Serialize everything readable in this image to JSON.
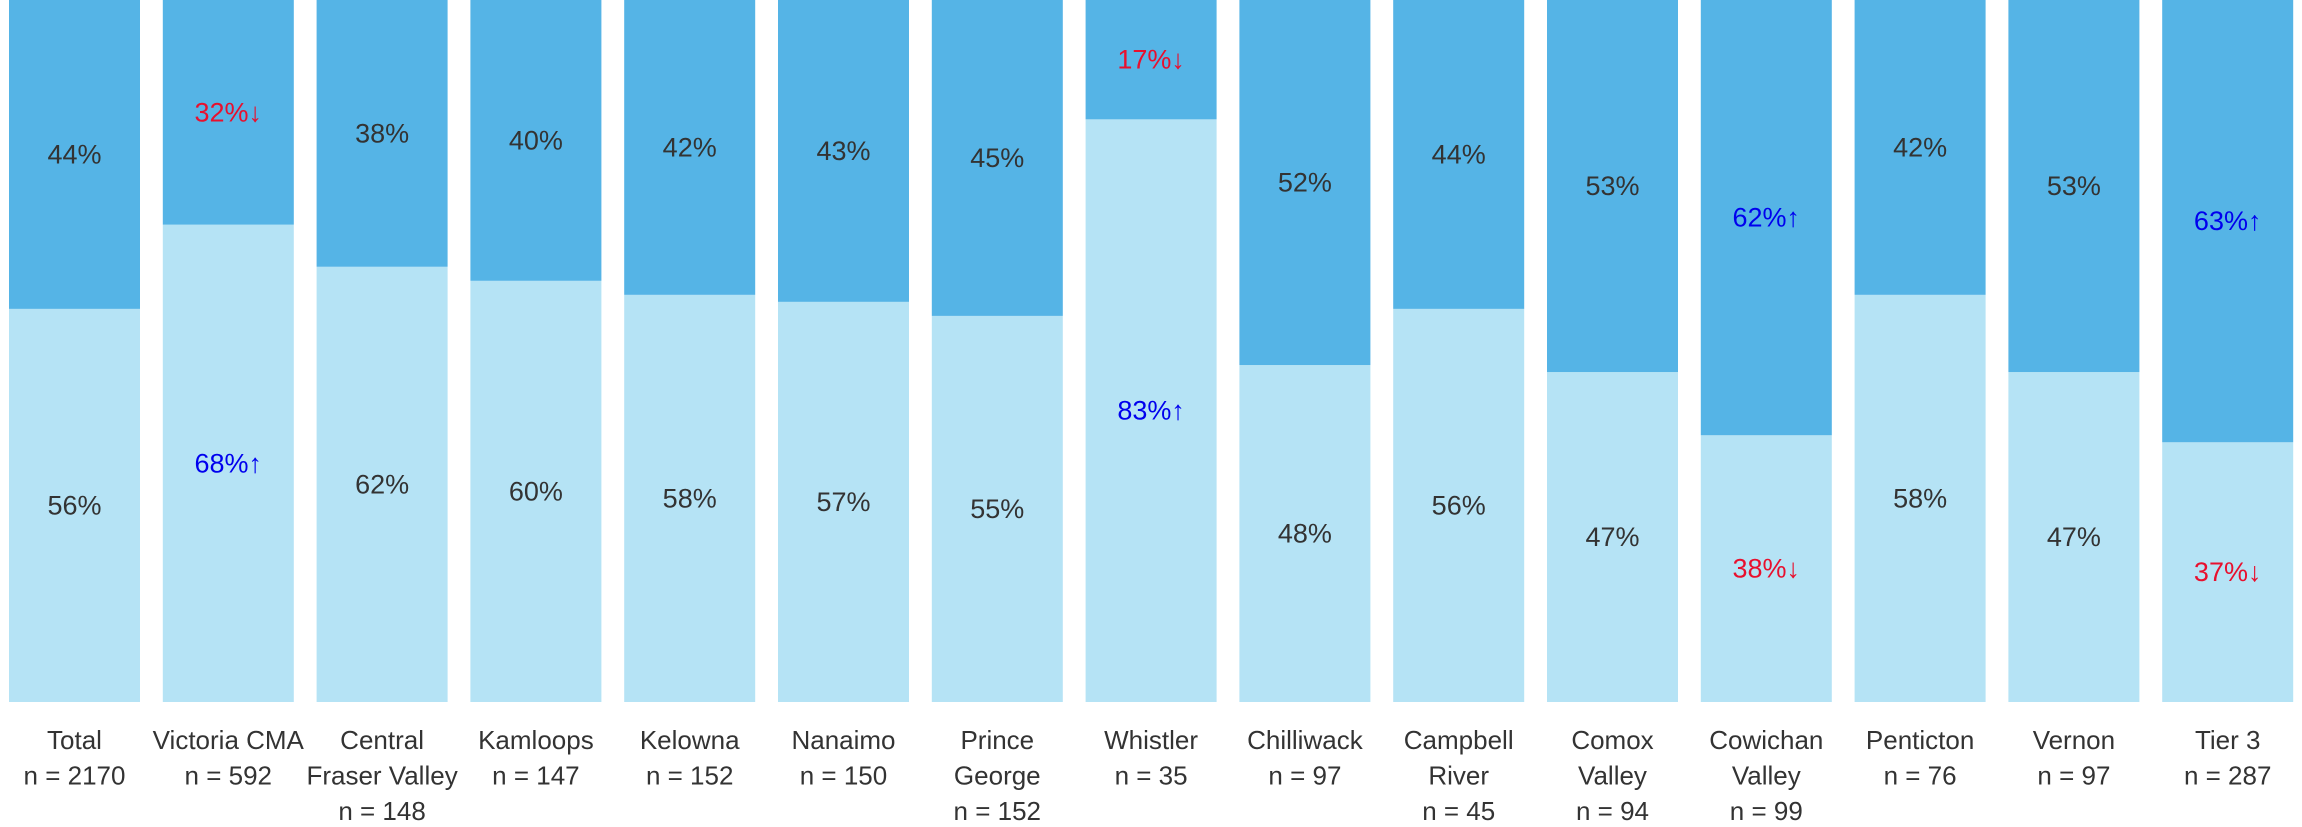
{
  "chart_data": {
    "type": "bar",
    "stacked": true,
    "percent_stacked": true,
    "categories": [
      {
        "lines": [
          "Total",
          "n = 2170"
        ]
      },
      {
        "lines": [
          "Victoria CMA",
          "n = 592"
        ]
      },
      {
        "lines": [
          "Central",
          "Fraser Valley",
          "n = 148"
        ]
      },
      {
        "lines": [
          "Kamloops",
          "n = 147"
        ]
      },
      {
        "lines": [
          "Kelowna",
          "n = 152"
        ]
      },
      {
        "lines": [
          "Nanaimo",
          "n = 150"
        ]
      },
      {
        "lines": [
          "Prince",
          "George",
          "n = 152"
        ]
      },
      {
        "lines": [
          "Whistler",
          "n = 35"
        ]
      },
      {
        "lines": [
          "Chilliwack",
          "n = 97"
        ]
      },
      {
        "lines": [
          "Campbell",
          "River",
          "n = 45"
        ]
      },
      {
        "lines": [
          "Comox",
          "Valley",
          "n = 94"
        ]
      },
      {
        "lines": [
          "Cowichan",
          "Valley",
          "n = 99"
        ]
      },
      {
        "lines": [
          "Penticton",
          "n = 76"
        ]
      },
      {
        "lines": [
          "Vernon",
          "n = 97"
        ]
      },
      {
        "lines": [
          "Tier 3",
          "n = 287"
        ]
      }
    ],
    "series": [
      {
        "key": "bottom",
        "color": "#b5e3f5",
        "values": [
          56,
          68,
          62,
          60,
          58,
          57,
          55,
          83,
          48,
          56,
          47,
          38,
          58,
          47,
          37
        ],
        "labels": [
          "56%",
          "68%↑",
          "62%",
          "60%",
          "58%",
          "57%",
          "55%",
          "83%↑",
          "48%",
          "56%",
          "47%",
          "38%↓",
          "58%",
          "47%",
          "37%↓"
        ],
        "flags": [
          "",
          "up",
          "",
          "",
          "",
          "",
          "",
          "up",
          "",
          "",
          "",
          "down",
          "",
          "",
          "down"
        ]
      },
      {
        "key": "top",
        "color": "#55b4e6",
        "values": [
          44,
          32,
          38,
          40,
          42,
          43,
          45,
          17,
          52,
          44,
          53,
          62,
          42,
          53,
          63
        ],
        "labels": [
          "44%",
          "32%↓",
          "38%",
          "40%",
          "42%",
          "43%",
          "45%",
          "17%↓",
          "52%",
          "44%",
          "53%",
          "62%↑",
          "42%",
          "53%",
          "63%↑"
        ],
        "flags": [
          "",
          "down",
          "",
          "",
          "",
          "",
          "",
          "down",
          "",
          "",
          "",
          "up",
          "",
          "",
          "up"
        ]
      }
    ],
    "ylim": [
      0,
      100
    ],
    "grid": false,
    "legend": "none",
    "colors": {
      "text": "#333333",
      "up": "#0000ee",
      "down": "#e8102e"
    }
  }
}
